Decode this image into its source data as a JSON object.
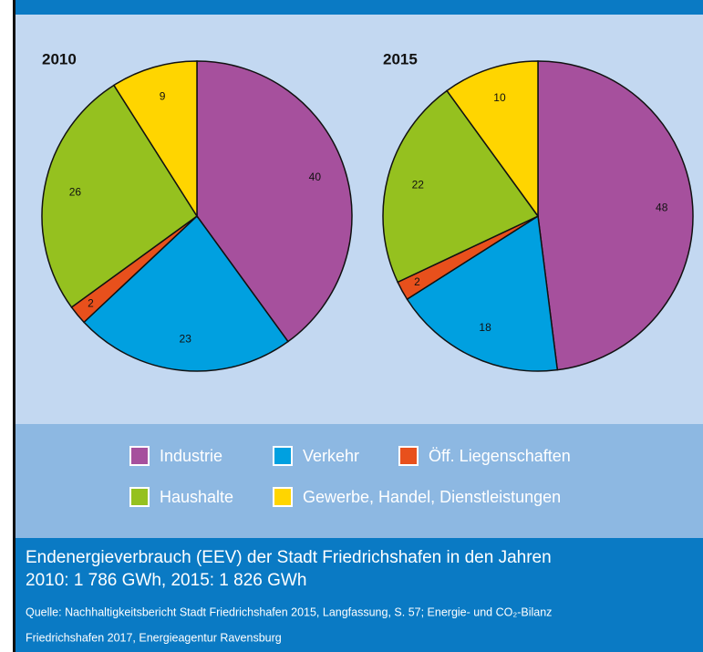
{
  "chart_data": [
    {
      "type": "pie",
      "title": "2010",
      "categories": [
        "Industrie",
        "Verkehr",
        "Öff. Liegenschaften",
        "Haushalte",
        "Gewerbe, Handel, Dienstleistungen"
      ],
      "values": [
        40,
        23,
        2,
        26,
        9
      ],
      "colors": [
        "#a6509d",
        "#00a0e0",
        "#e8501c",
        "#95c11f",
        "#ffd500"
      ]
    },
    {
      "type": "pie",
      "title": "2015",
      "categories": [
        "Industrie",
        "Verkehr",
        "Öff. Liegenschaften",
        "Haushalte",
        "Gewerbe, Handel, Dienstleistungen"
      ],
      "values": [
        48,
        18,
        2,
        22,
        10
      ],
      "colors": [
        "#a6509d",
        "#00a0e0",
        "#e8501c",
        "#95c11f",
        "#ffd500"
      ]
    }
  ],
  "caption": [
    "Endenergieverbrauch (EEV) der Stadt Friedrichshafen in den Jahren",
    "2010: 1 786 GWh, 2015: 1 826 GWh"
  ],
  "source": [
    "Quelle: Nachhaltigkeitsbericht Stadt Friedrichshafen  2015, Langfassung, S. 57; Energie- und CO₂-Bilanz",
    "Friedrichshafen 2017, Energieagentur Ravensburg"
  ]
}
